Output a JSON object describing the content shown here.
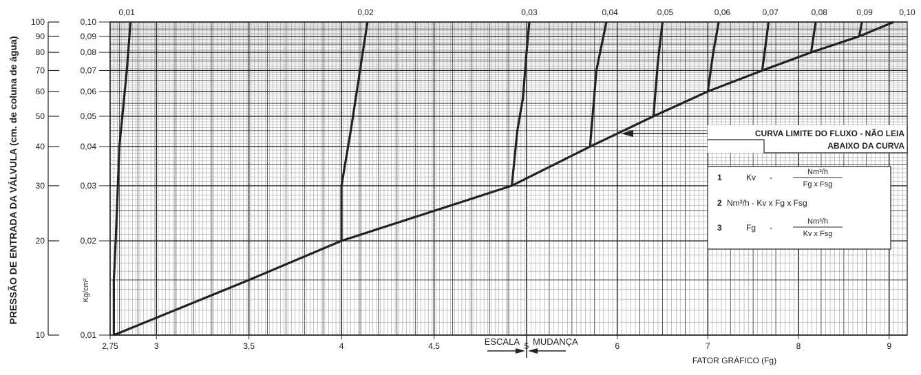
{
  "chart_data": {
    "type": "line",
    "title": "",
    "ylabel": "PRESSÃO DE ENTRADA DA VÁLVULA (cm. de coluna de água)",
    "ylabel_units": "Kg/cm²",
    "xlabel": "FATOR GRÁFICO (Fg)",
    "x_scale_note": {
      "left": "ESCALA",
      "right": "MUDANÇA"
    },
    "xlim": [
      2.75,
      9.2
    ],
    "x_scale_change_at": 5,
    "ylim": [
      10,
      100
    ],
    "y_scale": "log",
    "grid": true,
    "x_ticks": [
      "2,75",
      "3",
      "3,5",
      "4",
      "4,5",
      "5",
      "6",
      "7",
      "8",
      "9"
    ],
    "x_tick_values": [
      2.75,
      3,
      3.5,
      4,
      4.5,
      5,
      6,
      7,
      8,
      9
    ],
    "y_ticks_left": [
      "100",
      "90",
      "80",
      "70",
      "60",
      "50",
      "40",
      "30",
      "20",
      "10"
    ],
    "y_ticks_right": [
      "0,10",
      "0,09",
      "0,08",
      "0,07",
      "0,06",
      "0,05",
      "0,04",
      "0,03",
      "0,02",
      "0,01"
    ],
    "y_tick_values": [
      100,
      90,
      80,
      70,
      60,
      50,
      40,
      30,
      20,
      10
    ],
    "top_labels": [
      "0,01",
      "0,02",
      "0,03",
      "0,04",
      "0,05",
      "0,06",
      "0,07",
      "0,08",
      "0,09",
      "0,10"
    ],
    "top_label_x": [
      2.84,
      4.13,
      5.03,
      5.92,
      6.53,
      7.16,
      7.69,
      8.23,
      8.73,
      9.2
    ],
    "limit_curve": {
      "name": "CURVA LIMITE DO FLUXO",
      "x": [
        2.77,
        3.5,
        4.0,
        4.92,
        5.7,
        6.4,
        7.0,
        7.6,
        8.14,
        8.67,
        9.05
      ],
      "y": [
        10,
        15,
        20,
        30,
        40,
        50,
        60,
        70,
        80,
        90,
        100
      ]
    },
    "series": [
      {
        "x": [
          2.77,
          2.77,
          2.78,
          2.8,
          2.84,
          2.86
        ],
        "y": [
          10,
          15,
          20,
          40,
          70,
          100
        ]
      },
      {
        "x": [
          4.0,
          4.0,
          4.05,
          4.1,
          4.14
        ],
        "y": [
          20,
          30,
          45,
          70,
          100
        ]
      },
      {
        "x": [
          4.92,
          4.95,
          4.98,
          5.0,
          5.03
        ],
        "y": [
          30,
          45,
          57,
          80,
          100
        ]
      },
      {
        "x": [
          5.7,
          5.77,
          5.88
        ],
        "y": [
          40,
          70,
          100
        ]
      },
      {
        "x": [
          6.4,
          6.45,
          6.5
        ],
        "y": [
          50,
          75,
          100
        ]
      },
      {
        "x": [
          7.0,
          7.06,
          7.12
        ],
        "y": [
          60,
          80,
          100
        ]
      },
      {
        "x": [
          7.6,
          7.67
        ],
        "y": [
          70,
          100
        ]
      },
      {
        "x": [
          8.14,
          8.19
        ],
        "y": [
          80,
          100
        ]
      },
      {
        "x": [
          8.67,
          8.7
        ],
        "y": [
          90,
          100
        ]
      }
    ],
    "annotation": {
      "line1": "CURVA LIMITE DO FLUXO  -  NÃO LEIA",
      "line2": "ABAIXO DA CURVA"
    },
    "legend_box": {
      "items": [
        {
          "num": "1",
          "lhs": "Kv",
          "op": "-",
          "num_top": "Nm³/h",
          "den": "Fg x Fsg"
        },
        {
          "num": "2",
          "text": "Nm³/h - Kv x Fg x Fsg"
        },
        {
          "num": "3",
          "lhs": "Fg",
          "op": "-",
          "num_top": "Nm³/h",
          "den": "Kv x Fsg"
        }
      ]
    }
  }
}
